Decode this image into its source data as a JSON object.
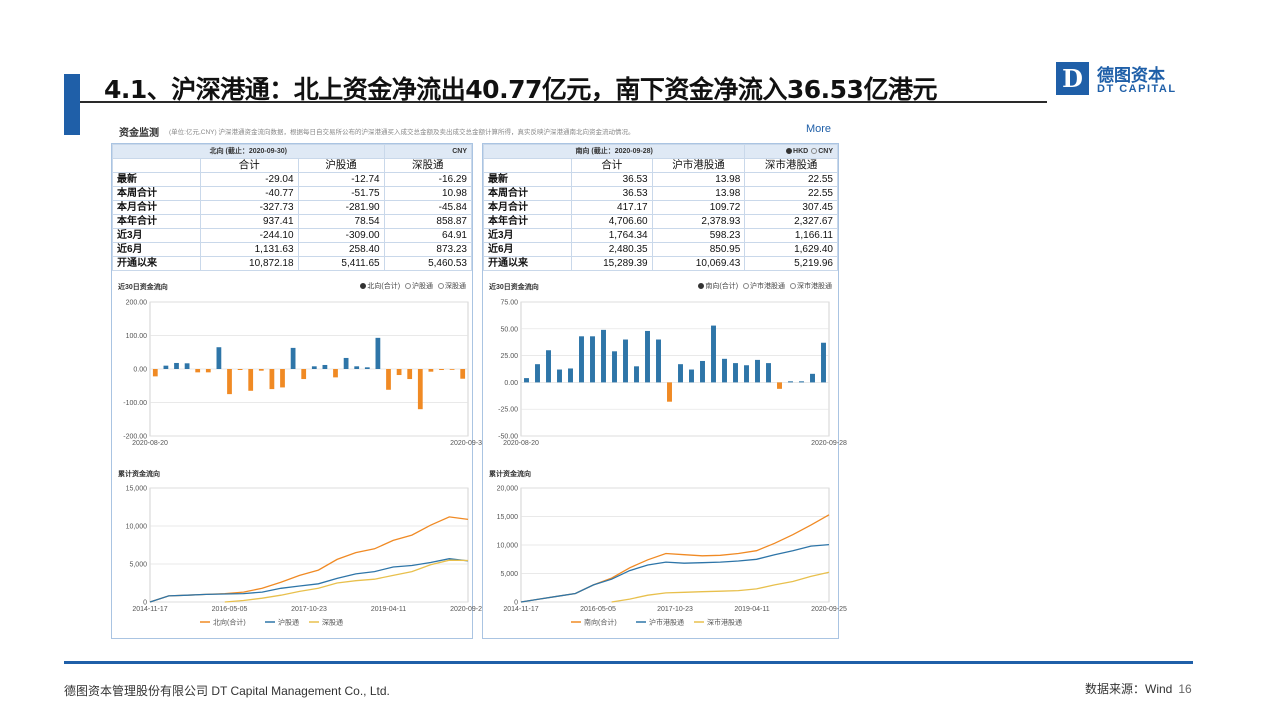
{
  "slide": {
    "title": "4.1、沪深港通：北上资金净流出40.77亿元，南下资金净流入36.53亿港元",
    "logo_mark": "D",
    "logo_cn": "德图资本",
    "logo_en": "DT CAPITAL",
    "accent": "#1f5fa8"
  },
  "panel": {
    "title": "资金监测",
    "note": "(单位:亿元,CNY)  沪深港通资金流向数据，根据每日自交易所公布的沪深港通买入成交总金额及卖出成交总金额计算所得，真实反映沪深港通南北向资金流动情况。",
    "more": "More"
  },
  "north_table": {
    "caption": "北向  (截止：2020-09-30)",
    "currency": "CNY",
    "headers": [
      "",
      "合计",
      "沪股通",
      "深股通"
    ],
    "rows": [
      [
        "最新",
        "-29.04",
        "-12.74",
        "-16.29"
      ],
      [
        "本周合计",
        "-40.77",
        "-51.75",
        "10.98"
      ],
      [
        "本月合计",
        "-327.73",
        "-281.90",
        "-45.84"
      ],
      [
        "本年合计",
        "937.41",
        "78.54",
        "858.87"
      ],
      [
        "近3月",
        "-244.10",
        "-309.00",
        "64.91"
      ],
      [
        "近6月",
        "1,131.63",
        "258.40",
        "873.23"
      ],
      [
        "开通以来",
        "10,872.18",
        "5,411.65",
        "5,460.53"
      ]
    ]
  },
  "south_table": {
    "caption": "南向  (截止：2020-09-28)",
    "currency_hkd": "HKD",
    "currency_cny": "CNY",
    "headers": [
      "",
      "合计",
      "沪市港股通",
      "深市港股通"
    ],
    "rows": [
      [
        "最新",
        "36.53",
        "13.98",
        "22.55"
      ],
      [
        "本周合计",
        "36.53",
        "13.98",
        "22.55"
      ],
      [
        "本月合计",
        "417.17",
        "109.72",
        "307.45"
      ],
      [
        "本年合计",
        "4,706.60",
        "2,378.93",
        "2,327.67"
      ],
      [
        "近3月",
        "1,764.34",
        "598.23",
        "1,166.11"
      ],
      [
        "近6月",
        "2,480.35",
        "850.95",
        "1,629.40"
      ],
      [
        "开通以来",
        "15,289.39",
        "10,069.43",
        "5,219.96"
      ]
    ]
  },
  "chart_data": [
    {
      "type": "bar",
      "title": "近30日资金流向",
      "options": [
        "北向(合计)",
        "沪股通",
        "深股通"
      ],
      "selected": 0,
      "x_start": "2020-08-20",
      "x_end": "2020-09-30",
      "ylim": [
        -200,
        200
      ],
      "yticks": [
        "200.00",
        "100.00",
        "0.00",
        "-100.00",
        "-200.00"
      ],
      "ytick_values": [
        200,
        100,
        0,
        -100,
        -200
      ],
      "pos_color": "#2e75a8",
      "neg_color": "#f08a24",
      "values": [
        -22,
        10,
        18,
        17,
        -10,
        -10,
        65,
        -75,
        -3,
        -65,
        -5,
        -60,
        -55,
        63,
        -30,
        8,
        12,
        -25,
        33,
        8,
        5,
        93,
        -62,
        -18,
        -30,
        -120,
        -8,
        -3,
        -2,
        -29
      ]
    },
    {
      "type": "bar",
      "title": "近30日资金流向",
      "options": [
        "南向(合计)",
        "沪市港股通",
        "深市港股通"
      ],
      "selected": 0,
      "x_start": "2020-08-20",
      "x_end": "2020-09-28",
      "ylim": [
        -50,
        75
      ],
      "yticks": [
        "75.00",
        "50.00",
        "25.00",
        "0.00",
        "-25.00",
        "-50.00"
      ],
      "ytick_values": [
        75,
        50,
        25,
        0,
        -25,
        -50
      ],
      "pos_color": "#2e75a8",
      "neg_color": "#f08a24",
      "values": [
        4,
        17,
        30,
        12,
        13,
        43,
        43,
        49,
        29,
        40,
        15,
        48,
        40,
        -18,
        17,
        12,
        20,
        53,
        22,
        18,
        16,
        21,
        18,
        -6,
        1,
        1,
        8,
        37
      ]
    },
    {
      "type": "line",
      "title": "累计资金流向",
      "ylim": [
        0,
        15000
      ],
      "yticks": [
        "15,000",
        "10,000",
        "5,000",
        "0"
      ],
      "ytick_values": [
        15000,
        10000,
        5000,
        0
      ],
      "xticks": [
        "2014-11-17",
        "2016-05-05",
        "2017-10-23",
        "2019-04-11",
        "2020-09-25"
      ],
      "series": [
        {
          "name": "北向(合计)",
          "color": "#f08a24",
          "values": [
            0,
            800,
            900,
            1000,
            1100,
            1300,
            1800,
            2600,
            3500,
            4200,
            5600,
            6500,
            7000,
            8100,
            8800,
            10100,
            11200,
            10870
          ]
        },
        {
          "name": "沪股通",
          "color": "#2e75a8",
          "values": [
            0,
            800,
            900,
            1000,
            1050,
            1100,
            1300,
            1800,
            2100,
            2400,
            3100,
            3700,
            4000,
            4600,
            4800,
            5200,
            5700,
            5410
          ]
        },
        {
          "name": "深股通",
          "color": "#e8c04d",
          "values": [
            null,
            null,
            null,
            null,
            0,
            200,
            500,
            900,
            1400,
            1800,
            2500,
            2800,
            3000,
            3500,
            4000,
            4900,
            5500,
            5460
          ]
        }
      ]
    },
    {
      "type": "line",
      "title": "累计资金流向",
      "ylim": [
        0,
        20000
      ],
      "yticks": [
        "20,000",
        "15,000",
        "10,000",
        "5,000",
        "0"
      ],
      "ytick_values": [
        20000,
        15000,
        10000,
        5000,
        0
      ],
      "xticks": [
        "2014-11-17",
        "2016-05-05",
        "2017-10-23",
        "2019-04-11",
        "2020-09-25"
      ],
      "series": [
        {
          "name": "南向(合计)",
          "color": "#f08a24",
          "values": [
            0,
            500,
            1000,
            1500,
            3000,
            4200,
            6000,
            7400,
            8500,
            8300,
            8100,
            8200,
            8500,
            9000,
            10300,
            11800,
            13500,
            15290
          ]
        },
        {
          "name": "沪市港股通",
          "color": "#2e75a8",
          "values": [
            0,
            500,
            1000,
            1500,
            3000,
            4000,
            5500,
            6500,
            7000,
            6800,
            6900,
            7000,
            7200,
            7500,
            8300,
            9000,
            9800,
            10070
          ]
        },
        {
          "name": "深市港股通",
          "color": "#e8c04d",
          "values": [
            null,
            null,
            null,
            null,
            null,
            0,
            500,
            1200,
            1600,
            1700,
            1800,
            1900,
            2000,
            2300,
            3000,
            3600,
            4500,
            5220
          ]
        }
      ]
    }
  ],
  "footer": {
    "left": "德图资本管理股份有限公司  DT Capital  Management  Co., Ltd.",
    "source": "数据来源：Wind",
    "page": "16"
  }
}
